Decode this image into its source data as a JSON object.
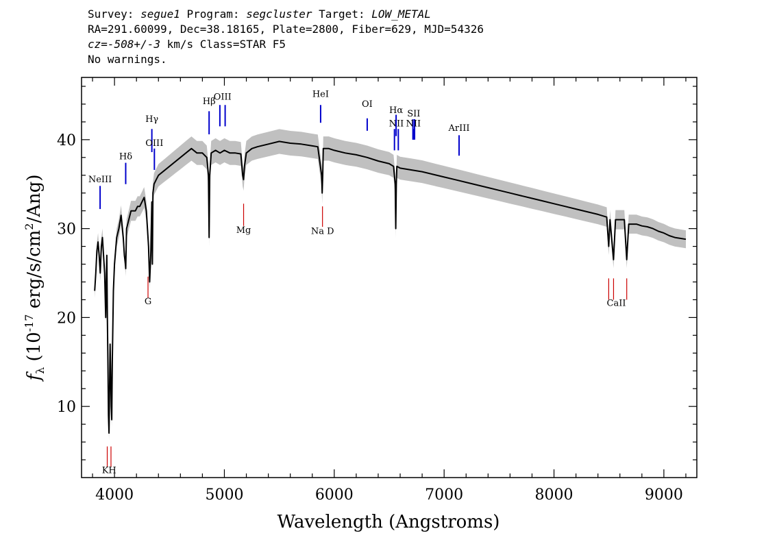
{
  "header": {
    "line1": {
      "survey_label": "Survey: ",
      "survey": "segue1",
      "program_label": " Program: ",
      "program": "segcluster",
      "target_label": " Target: ",
      "target": "LOW_METAL"
    },
    "line2": "RA=291.60099, Dec=38.18165, Plate=2800, Fiber=629, MJD=54326",
    "line3": {
      "cz": "cz=-508+/-3",
      "rest": " km/s Class=STAR F5"
    },
    "line4": "No warnings."
  },
  "chart_data": {
    "type": "line",
    "xlabel": "Wavelength (Angstroms)",
    "ylabel_prefix": "f",
    "ylabel_sub": "λ",
    "ylabel_mid": " (10",
    "ylabel_sup": "-17",
    "ylabel_rest": " erg/s/cm",
    "ylabel_sup2": "2",
    "ylabel_end": "/Ang)",
    "xlim": [
      3700,
      9300
    ],
    "ylim": [
      2,
      47
    ],
    "xticks": [
      4000,
      5000,
      6000,
      7000,
      8000,
      9000
    ],
    "yticks": [
      10,
      20,
      30,
      40
    ],
    "series": [
      {
        "color": "#000000",
        "error_color": "#c0c0c0",
        "x": [
          3820,
          3830,
          3840,
          3850,
          3860,
          3870,
          3880,
          3890,
          3900,
          3910,
          3920,
          3925,
          3930,
          3935,
          3940,
          3945,
          3950,
          3955,
          3960,
          3965,
          3970,
          3975,
          3980,
          3990,
          4000,
          4020,
          4040,
          4060,
          4080,
          4090,
          4100,
          4102,
          4110,
          4130,
          4150,
          4170,
          4190,
          4210,
          4230,
          4250,
          4270,
          4290,
          4300,
          4310,
          4320,
          4330,
          4340,
          4345,
          4350,
          4360,
          4380,
          4400,
          4450,
          4500,
          4550,
          4600,
          4650,
          4700,
          4750,
          4800,
          4840,
          4855,
          4861,
          4867,
          4880,
          4920,
          4960,
          5000,
          5050,
          5100,
          5150,
          5167,
          5175,
          5183,
          5200,
          5250,
          5300,
          5400,
          5500,
          5600,
          5700,
          5800,
          5850,
          5885,
          5890,
          5895,
          5900,
          5950,
          6000,
          6100,
          6200,
          6300,
          6400,
          6500,
          6540,
          6555,
          6560,
          6565,
          6570,
          6600,
          6700,
          6800,
          6900,
          7000,
          7100,
          7200,
          7300,
          7400,
          7500,
          7600,
          7700,
          7800,
          7900,
          8000,
          8100,
          8200,
          8300,
          8400,
          8480,
          8498,
          8510,
          8542,
          8560,
          8600,
          8640,
          8662,
          8680,
          8750,
          8800,
          8850,
          8900,
          8950,
          9000,
          9050,
          9100,
          9150,
          9200
        ],
        "y": [
          23,
          25,
          27.5,
          28.5,
          27,
          25,
          28,
          29,
          27,
          25,
          20,
          24,
          27,
          20,
          15,
          9,
          7,
          12,
          17,
          14,
          10,
          8.5,
          15,
          23,
          26,
          29,
          30,
          31.5,
          29,
          27,
          26,
          25.5,
          30,
          31,
          32,
          32,
          32,
          32.5,
          32.5,
          33,
          33.5,
          32,
          30,
          28,
          24,
          27,
          33,
          26,
          34,
          35,
          35.5,
          36,
          36.5,
          37,
          37.5,
          38,
          38.5,
          39,
          38.5,
          38.5,
          38,
          36,
          29,
          36,
          38.5,
          38.8,
          38.5,
          38.8,
          38.5,
          38.5,
          38.4,
          36,
          35.5,
          37,
          38.5,
          39,
          39.2,
          39.5,
          39.8,
          39.6,
          39.5,
          39.3,
          39.2,
          36,
          34,
          36,
          39,
          39,
          38.8,
          38.5,
          38.3,
          38,
          37.6,
          37.3,
          37,
          35,
          30,
          35,
          37,
          36.8,
          36.6,
          36.4,
          36.1,
          35.8,
          35.5,
          35.2,
          34.9,
          34.6,
          34.3,
          34,
          33.7,
          33.4,
          33.1,
          32.8,
          32.5,
          32.2,
          31.9,
          31.6,
          31.3,
          28,
          31,
          26.5,
          31,
          31,
          31,
          26.5,
          30.5,
          30.5,
          30.3,
          30.2,
          30,
          29.7,
          29.5,
          29.2,
          29,
          28.9,
          28.8
        ]
      }
    ],
    "emission_lines": [
      {
        "label": "NeIII",
        "x": 3869,
        "y_top": 34.8,
        "y_bot": 32.2,
        "label_y": 35.2
      },
      {
        "label": "Hδ",
        "x": 4102,
        "y_top": 37.4,
        "y_bot": 35,
        "label_y": 37.8
      },
      {
        "label": "Hγ",
        "x": 4340,
        "y_top": 41.2,
        "y_bot": 38.6,
        "label_y": 42
      },
      {
        "label": "OIII",
        "x": 4363,
        "y_top": 39,
        "y_bot": 36.6,
        "label_y": 39.3
      },
      {
        "label": "Hβ",
        "x": 4861,
        "y_top": 43.2,
        "y_bot": 40.6,
        "label_y": 44
      },
      {
        "label": "OIII",
        "x1": 4959,
        "x2": 5007,
        "y_top": 43.9,
        "y_bot": 41.5,
        "label_y": 44.5
      },
      {
        "label": "HeI",
        "x": 5876,
        "y_top": 43.9,
        "y_bot": 41.9,
        "label_y": 44.8
      },
      {
        "label": "OI",
        "x": 6300,
        "y_top": 42.4,
        "y_bot": 41,
        "label_y": 43.7
      },
      {
        "label": "NII",
        "x1": 6548,
        "x2": 6583,
        "y_top": 41.2,
        "y_bot": 38.8,
        "label_y": 41.5
      },
      {
        "label": "Hα",
        "x": 6563,
        "y_top": 42.8,
        "y_bot": 40.4,
        "label_y": 43
      },
      {
        "label": "SII",
        "x1": 6716,
        "x2": 6731,
        "y_top": 42.3,
        "y_bot": 40,
        "label_y": 42.6
      },
      {
        "label": "NII",
        "x": 6720,
        "y_top": 41.2,
        "y_bot": 40,
        "label_y": 41.5
      },
      {
        "label": "ArIII",
        "x": 7136,
        "y_top": 40.5,
        "y_bot": 38.2,
        "label_y": 41
      }
    ],
    "absorption_lines": [
      {
        "label": "KH",
        "x1": 3934,
        "x2": 3968,
        "y_top": 5.5,
        "y_bot": 3.2,
        "label_y": 2.5
      },
      {
        "label": "G",
        "x": 4305,
        "y_top": 24.6,
        "y_bot": 22.2,
        "label_y": 21.5
      },
      {
        "label": "Mg",
        "x": 5175,
        "y_top": 32.8,
        "y_bot": 30.3,
        "label_y": 29.5
      },
      {
        "label": "Na  D",
        "x": 5893,
        "y_top": 32.5,
        "y_bot": 30.2,
        "label_y": 29.4
      },
      {
        "label": "CaII",
        "x1": 8498,
        "x2": 8542,
        "x3": 8662,
        "y_top": 24.4,
        "y_bot": 22,
        "label_y": 21.3
      }
    ],
    "colors": {
      "emission": "#0000cc",
      "absorption": "#cc0000"
    }
  }
}
